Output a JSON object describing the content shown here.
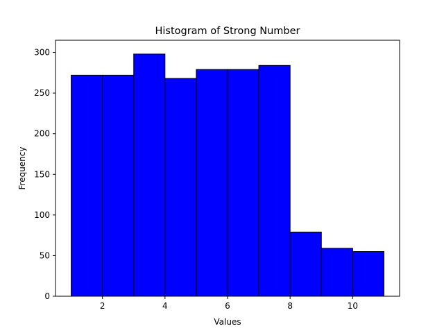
{
  "chart_data": {
    "type": "bar",
    "title": "Histogram of Strong Number",
    "xlabel": "Values",
    "ylabel": "Frequency",
    "bin_edges": [
      1,
      2,
      3,
      4,
      5,
      6,
      7,
      8,
      9,
      10,
      11
    ],
    "values": [
      272,
      272,
      298,
      268,
      279,
      279,
      284,
      79,
      59,
      55
    ],
    "xlim": [
      0.5,
      11.5
    ],
    "ylim": [
      0,
      315
    ],
    "xticks": [
      2,
      4,
      6,
      8,
      10
    ],
    "yticks": [
      0,
      50,
      100,
      150,
      200,
      250,
      300
    ],
    "bar_color": "#0000ff",
    "edge_color": "#000000",
    "grid": false
  }
}
